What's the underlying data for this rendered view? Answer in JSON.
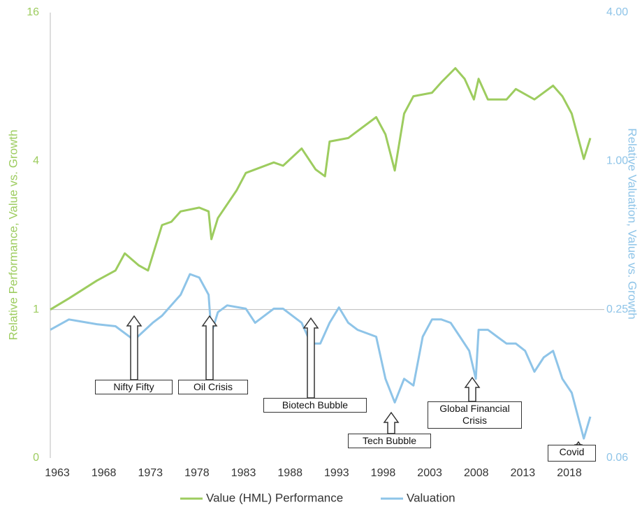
{
  "chart_data": {
    "type": "line",
    "y_label": "Relative Performance, Value vs. Growth",
    "y2_label": "Relative Valuation, Value vs. Growth",
    "xlim": [
      1963,
      2022.5
    ],
    "xticks": [
      1963,
      1968,
      1973,
      1978,
      1983,
      1988,
      1993,
      1998,
      2003,
      2008,
      2013,
      2018
    ],
    "ylim": [
      0.25,
      16
    ],
    "yticks": [
      {
        "value": 0.25,
        "label": "0"
      },
      1,
      4,
      16
    ],
    "y2lim": [
      0.0625,
      4
    ],
    "y2ticks": [
      {
        "value": 0.0625,
        "label": "0.06"
      },
      {
        "value": 0.25,
        "label": "0.25"
      },
      {
        "value": 1,
        "label": "1.00"
      },
      {
        "value": 4,
        "label": "4.00"
      }
    ],
    "log_scale": true,
    "grid": false,
    "legend": "bottom",
    "series": [
      {
        "name": "Value (HML) Performance",
        "color": "#9dcc5f",
        "x": [
          1963,
          1965,
          1968,
          1970,
          1971,
          1972.5,
          1973.5,
          1975,
          1976,
          1977,
          1979,
          1980,
          1980.3,
          1981,
          1983,
          1984,
          1985,
          1987,
          1988,
          1990,
          1991.5,
          1992.5,
          1993,
          1995,
          1998,
          1999,
          2000,
          2001,
          2002,
          2004,
          2005,
          2006.5,
          2007.5,
          2008.5,
          2009,
          2010,
          2012,
          2013,
          2015,
          2017,
          2018,
          2019,
          2020.3,
          2021
        ],
        "values": [
          1.0,
          1.11,
          1.31,
          1.44,
          1.69,
          1.51,
          1.44,
          2.2,
          2.27,
          2.5,
          2.59,
          2.5,
          1.93,
          2.35,
          3.04,
          3.58,
          3.7,
          3.95,
          3.83,
          4.5,
          3.7,
          3.47,
          4.8,
          4.96,
          6.03,
          5.13,
          3.66,
          6.23,
          7.33,
          7.57,
          8.35,
          9.52,
          8.62,
          7.11,
          8.62,
          7.11,
          7.11,
          7.84,
          7.11,
          8.09,
          7.33,
          6.23,
          4.08,
          4.96
        ]
      },
      {
        "name": "Valuation",
        "color": "#8ec4e8",
        "axis": "y2",
        "x": [
          1963,
          1965,
          1968,
          1970,
          1972,
          1974,
          1975,
          1977,
          1978,
          1979,
          1980,
          1980.3,
          1981,
          1982,
          1984,
          1985,
          1987,
          1988,
          1990,
          1991,
          1992,
          1993,
          1994,
          1995,
          1996,
          1998,
          1999,
          2000,
          2001,
          2002,
          2003,
          2004,
          2005,
          2006,
          2007,
          2008,
          2008.7,
          2009,
          2010,
          2011,
          2012,
          2013,
          2014,
          2015,
          2016,
          2017,
          2018,
          2019,
          2020.3,
          2021
        ],
        "values": [
          0.207,
          0.228,
          0.218,
          0.214,
          0.188,
          0.221,
          0.236,
          0.287,
          0.348,
          0.337,
          0.287,
          0.2,
          0.244,
          0.26,
          0.252,
          0.221,
          0.252,
          0.252,
          0.221,
          0.182,
          0.182,
          0.221,
          0.255,
          0.221,
          0.207,
          0.194,
          0.131,
          0.105,
          0.131,
          0.123,
          0.194,
          0.228,
          0.228,
          0.221,
          0.194,
          0.17,
          0.131,
          0.207,
          0.207,
          0.194,
          0.182,
          0.182,
          0.17,
          0.14,
          0.16,
          0.17,
          0.131,
          0.115,
          0.075,
          0.092
        ]
      }
    ],
    "annotations": [
      "Nifty Fifty",
      "Oil Crisis",
      "Biotech Bubble",
      "Tech Bubble",
      "Global Financial Crisis",
      "Covid"
    ]
  }
}
